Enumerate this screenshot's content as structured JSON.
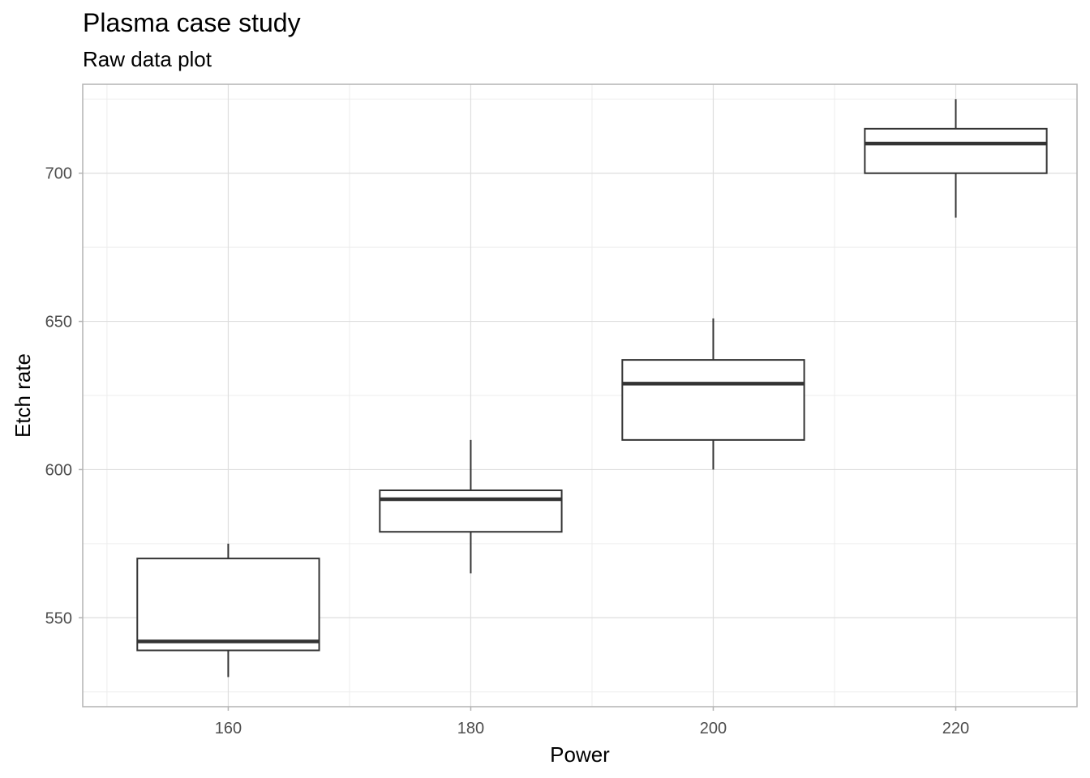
{
  "title": "Plasma case study",
  "subtitle": "Raw data plot",
  "colors": {
    "box_stroke": "#333333",
    "grid_major": "#dedede",
    "grid_minor": "#ededed",
    "panel_border": "#b3b3b3",
    "background": "#ffffff"
  },
  "chart_data": {
    "type": "boxplot",
    "title": "Plasma case study",
    "subtitle": "Raw data plot",
    "xlabel": "Power",
    "ylabel": "Etch rate",
    "xlim": [
      148,
      230
    ],
    "ylim": [
      520,
      730
    ],
    "x_ticks": [
      160,
      180,
      200,
      220
    ],
    "y_ticks": [
      550,
      600,
      650,
      700
    ],
    "y_minor": [
      525,
      575,
      625,
      675,
      725
    ],
    "x_minor": [
      150,
      170,
      190,
      210,
      230
    ],
    "grid": true,
    "boxes": [
      {
        "x": 160,
        "lower_whisker": 530,
        "q1": 539,
        "median": 542,
        "q3": 570,
        "upper_whisker": 575
      },
      {
        "x": 180,
        "lower_whisker": 565,
        "q1": 579,
        "median": 590,
        "q3": 593,
        "upper_whisker": 610
      },
      {
        "x": 200,
        "lower_whisker": 600,
        "q1": 610,
        "median": 629,
        "q3": 637,
        "upper_whisker": 651
      },
      {
        "x": 220,
        "lower_whisker": 685,
        "q1": 700,
        "median": 710,
        "q3": 715,
        "upper_whisker": 725
      }
    ],
    "box_width": 15
  }
}
